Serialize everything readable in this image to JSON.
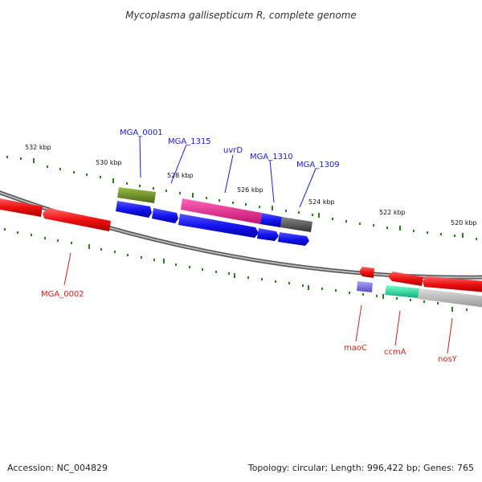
{
  "title": "Mycoplasma gallisepticum R, complete genome",
  "scale_labels": [
    "532 kbp",
    "530 kbp",
    "528 kbp",
    "526 kbp",
    "524 kbp",
    "522 kbp",
    "520 kbp"
  ],
  "genes_top": [
    "MGA_0001",
    "MGA_1315",
    "uvrD",
    "MGA_1310",
    "MGA_1309"
  ],
  "genes_bottom": [
    "MGA_0002",
    "maoC",
    "ccmA",
    "nosY"
  ],
  "footer": {
    "accession": "Accession: NC_004829",
    "summary": "Topology: circular; Length: 996,422 bp; Genes: 765"
  },
  "colors": {
    "backbone": "#888888",
    "tick": "#2e7d1e",
    "red": "#ee1111",
    "blue": "#1a1aee",
    "olive": "#6b8e23",
    "magenta": "#e8158a",
    "darkgray": "#555555",
    "lavender": "#7b6fd6",
    "teal": "#12e0a0",
    "lightgray": "#bbbbbb"
  }
}
